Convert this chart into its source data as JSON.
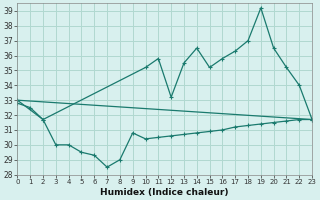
{
  "xlabel": "Humidex (Indice chaleur)",
  "bg_color": "#d8f0ee",
  "grid_color": "#b0d8d0",
  "line_color": "#1a7a6e",
  "xlim": [
    0,
    23
  ],
  "ylim": [
    28,
    39.5
  ],
  "yticks": [
    28,
    29,
    30,
    31,
    32,
    33,
    34,
    35,
    36,
    37,
    38,
    39
  ],
  "xticks": [
    0,
    1,
    2,
    3,
    4,
    5,
    6,
    7,
    8,
    9,
    10,
    11,
    12,
    13,
    14,
    15,
    16,
    17,
    18,
    19,
    20,
    21,
    22,
    23
  ],
  "line1_x": [
    0,
    1,
    2,
    3,
    4,
    5,
    6,
    7,
    8,
    9,
    10,
    11,
    12,
    13,
    14,
    15,
    16,
    17,
    18,
    19,
    20,
    21,
    22,
    23
  ],
  "line1_y": [
    32.8,
    32.5,
    31.7,
    30.0,
    30.0,
    29.5,
    29.3,
    28.5,
    29.0,
    30.8,
    30.4,
    30.5,
    30.6,
    30.7,
    30.8,
    30.9,
    31.0,
    31.2,
    31.3,
    31.4,
    31.5,
    31.6,
    31.7,
    31.7
  ],
  "line2_x": [
    0,
    23
  ],
  "line2_y": [
    33.0,
    31.7
  ],
  "line3_x": [
    0,
    2,
    10,
    11,
    12,
    13,
    14,
    15,
    16,
    17,
    18,
    19,
    20,
    21,
    22,
    23
  ],
  "line3_y": [
    33.0,
    31.7,
    35.2,
    35.8,
    33.2,
    35.5,
    36.5,
    35.2,
    35.8,
    36.3,
    37.0,
    39.2,
    36.5,
    35.2,
    34.0,
    31.7
  ]
}
